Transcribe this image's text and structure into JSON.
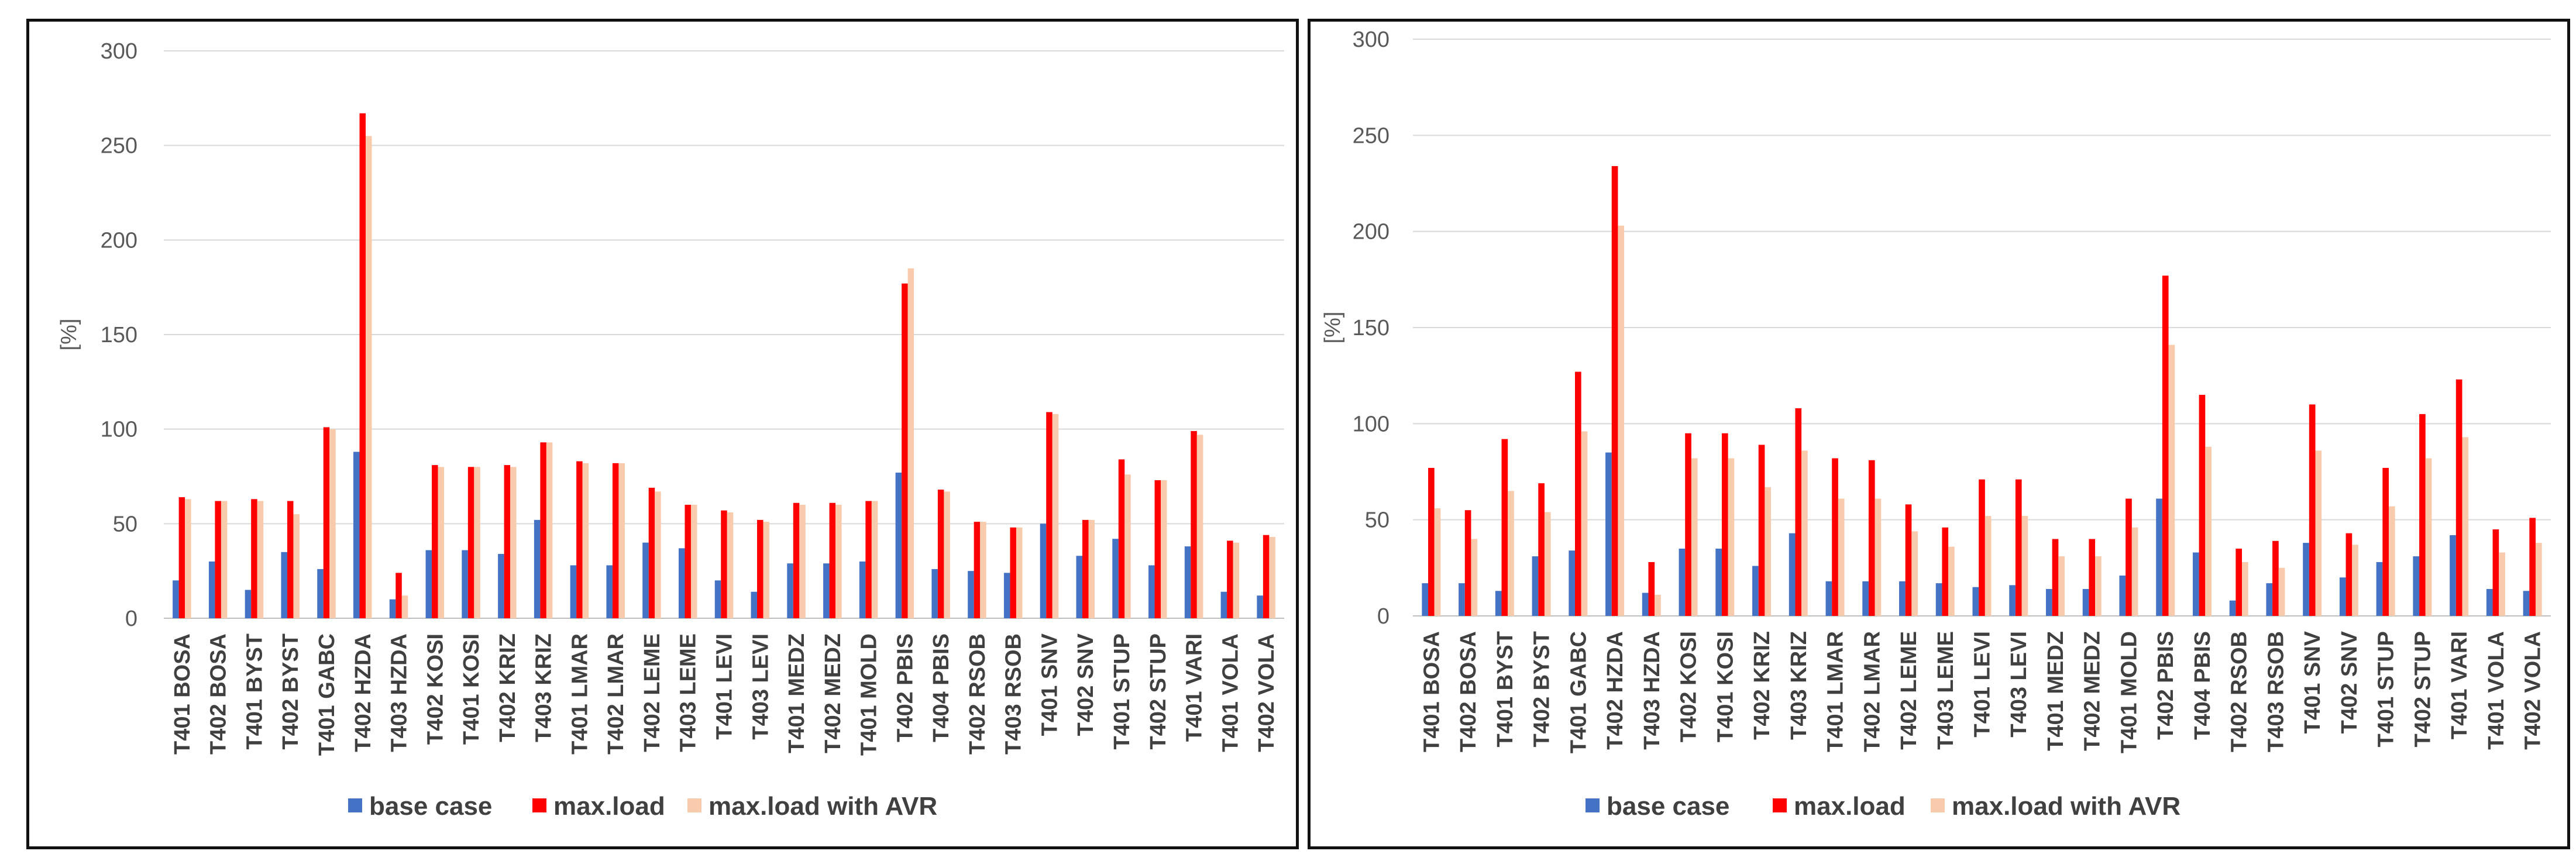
{
  "colors": {
    "base": "#4472C4",
    "max": "#FF0000",
    "avr": "#F8CBAD",
    "grid": "#D9D9D9"
  },
  "chart_data": [
    {
      "type": "bar",
      "title": "",
      "xlabel": "",
      "ylabel": "[%]",
      "ylim": [
        0,
        300
      ],
      "yticks": [
        0,
        50,
        100,
        150,
        200,
        250,
        300
      ],
      "legend_position": "bottom",
      "categories": [
        "T401 BOSA",
        "T402 BOSA",
        "T401 BYST",
        "T402 BYST",
        "T401 GABC",
        "T402 HZDA",
        "T403 HZDA",
        "T402 KOSI",
        "T401 KOSI",
        "T402 KRIZ",
        "T403 KRIZ",
        "T401 LMAR",
        "T402 LMAR",
        "T402 LEME",
        "T403 LEME",
        "T401 LEVI",
        "T403 LEVI",
        "T401 MEDZ",
        "T402 MEDZ",
        "T401 MOLD",
        "T402 PBIS",
        "T404 PBIS",
        "T402 RSOB",
        "T403 RSOB",
        "T401 SNV",
        "T402 SNV",
        "T401 STUP",
        "T402 STUP",
        "T401 VARI",
        "T401 VOLA",
        "T402 VOLA"
      ],
      "series": [
        {
          "name": "base case",
          "values": [
            20,
            30,
            15,
            35,
            26,
            88,
            10,
            36,
            36,
            34,
            52,
            28,
            28,
            40,
            37,
            20,
            14,
            29,
            29,
            30,
            77,
            26,
            25,
            24,
            50,
            33,
            42,
            28,
            38,
            14,
            12
          ]
        },
        {
          "name": "max.load",
          "values": [
            64,
            62,
            63,
            62,
            101,
            267,
            24,
            81,
            80,
            81,
            93,
            83,
            82,
            69,
            60,
            57,
            52,
            61,
            61,
            62,
            177,
            68,
            51,
            48,
            109,
            52,
            84,
            73,
            99,
            41,
            44
          ]
        },
        {
          "name": "max.load with AVR",
          "values": [
            63,
            62,
            62,
            55,
            100,
            255,
            12,
            80,
            80,
            80,
            93,
            82,
            82,
            67,
            60,
            56,
            51,
            60,
            60,
            62,
            185,
            67,
            51,
            48,
            108,
            52,
            76,
            73,
            97,
            40,
            43
          ]
        }
      ]
    },
    {
      "type": "bar",
      "title": "",
      "xlabel": "",
      "ylabel": "[%]",
      "ylim": [
        0,
        300
      ],
      "yticks": [
        0,
        50,
        100,
        150,
        200,
        250,
        300
      ],
      "legend_position": "bottom",
      "categories": [
        "T401 BOSA",
        "T402 BOSA",
        "T401 BYST",
        "T402 BYST",
        "T401 GABC",
        "T402 HZDA",
        "T403 HZDA",
        "T402 KOSI",
        "T401 KOSI",
        "T402 KRIZ",
        "T403 KRIZ",
        "T401 LMAR",
        "T402 LMAR",
        "T402 LEME",
        "T403 LEME",
        "T401 LEVI",
        "T403 LEVI",
        "T401 MEDZ",
        "T402 MEDZ",
        "T401 MOLD",
        "T402 PBIS",
        "T404 PBIS",
        "T402 RSOB",
        "T403 RSOB",
        "T401 SNV",
        "T402 SNV",
        "T401 STUP",
        "T402 STUP",
        "T401 VARI",
        "T401 VOLA",
        "T402 VOLA"
      ],
      "series": [
        {
          "name": "base case",
          "values": [
            17,
            17,
            13,
            31,
            34,
            85,
            12,
            35,
            35,
            26,
            43,
            18,
            18,
            18,
            17,
            15,
            16,
            14,
            14,
            21,
            61,
            33,
            8,
            17,
            38,
            20,
            28,
            31,
            42,
            14,
            13
          ]
        },
        {
          "name": "max.load",
          "values": [
            77,
            55,
            92,
            69,
            127,
            234,
            28,
            95,
            95,
            89,
            108,
            82,
            81,
            58,
            46,
            71,
            71,
            40,
            40,
            61,
            177,
            115,
            35,
            39,
            110,
            43,
            77,
            105,
            123,
            45,
            51
          ]
        },
        {
          "name": "max.load with AVR",
          "values": [
            56,
            40,
            65,
            54,
            96,
            203,
            11,
            82,
            82,
            67,
            86,
            61,
            61,
            44,
            36,
            52,
            52,
            31,
            31,
            46,
            141,
            88,
            28,
            25,
            86,
            37,
            57,
            82,
            93,
            33,
            38
          ]
        }
      ]
    }
  ]
}
